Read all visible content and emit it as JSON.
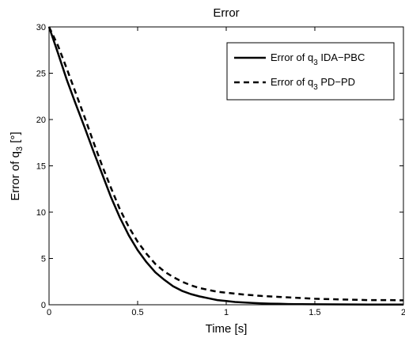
{
  "chart_data": {
    "type": "line",
    "title": "Error",
    "xlabel": "Time [s]",
    "ylabel_main": "Error of q",
    "ylabel_sub": "3",
    "ylabel_unit": " [°]",
    "xlim": [
      0,
      2
    ],
    "ylim": [
      0,
      30
    ],
    "xticks": [
      0,
      0.5,
      1,
      1.5,
      2
    ],
    "xtick_labels": [
      "0",
      "0.5",
      "1",
      "1.5",
      "2"
    ],
    "yticks": [
      0,
      5,
      10,
      15,
      20,
      25,
      30
    ],
    "ytick_labels": [
      "0",
      "5",
      "10",
      "15",
      "20",
      "25",
      "30"
    ],
    "grid": false,
    "legend_position": "top-right",
    "series": [
      {
        "name": "Error of q3 IDA−PBC",
        "legend_main": "Error of q",
        "legend_sub": "3",
        "legend_rest": " IDA−PBC",
        "style": "solid",
        "color": "#000000",
        "x": [
          0,
          0.05,
          0.1,
          0.15,
          0.2,
          0.25,
          0.3,
          0.35,
          0.4,
          0.45,
          0.5,
          0.55,
          0.6,
          0.65,
          0.7,
          0.75,
          0.8,
          0.85,
          0.9,
          0.95,
          1.0,
          1.05,
          1.1,
          1.15,
          1.2,
          1.25,
          1.3,
          1.35,
          1.4,
          1.5,
          1.6,
          1.7,
          1.8,
          1.9,
          2.0
        ],
        "y": [
          30,
          27.2,
          24.3,
          21.7,
          19.2,
          16.6,
          14.1,
          11.6,
          9.4,
          7.5,
          5.9,
          4.6,
          3.5,
          2.7,
          2.0,
          1.5,
          1.15,
          0.9,
          0.7,
          0.5,
          0.4,
          0.3,
          0.25,
          0.2,
          0.15,
          0.12,
          0.1,
          0.08,
          0.07,
          0.05,
          0.04,
          0.03,
          0.02,
          0.02,
          0.02
        ]
      },
      {
        "name": "Error of q3 PD−PD",
        "legend_main": "Error of q",
        "legend_sub": "3",
        "legend_rest": " PD−PD",
        "style": "dashed",
        "color": "#000000",
        "x": [
          0,
          0.05,
          0.1,
          0.15,
          0.2,
          0.25,
          0.3,
          0.35,
          0.4,
          0.45,
          0.5,
          0.55,
          0.6,
          0.65,
          0.7,
          0.75,
          0.8,
          0.85,
          0.9,
          0.95,
          1.0,
          1.1,
          1.2,
          1.3,
          1.4,
          1.5,
          1.6,
          1.7,
          1.8,
          1.9,
          2.0
        ],
        "y": [
          30,
          28.0,
          25.5,
          22.9,
          20.3,
          17.6,
          15.0,
          12.6,
          10.3,
          8.4,
          6.8,
          5.5,
          4.4,
          3.6,
          3.0,
          2.5,
          2.1,
          1.8,
          1.6,
          1.4,
          1.3,
          1.1,
          0.95,
          0.85,
          0.75,
          0.65,
          0.6,
          0.55,
          0.5,
          0.5,
          0.48
        ]
      }
    ]
  }
}
